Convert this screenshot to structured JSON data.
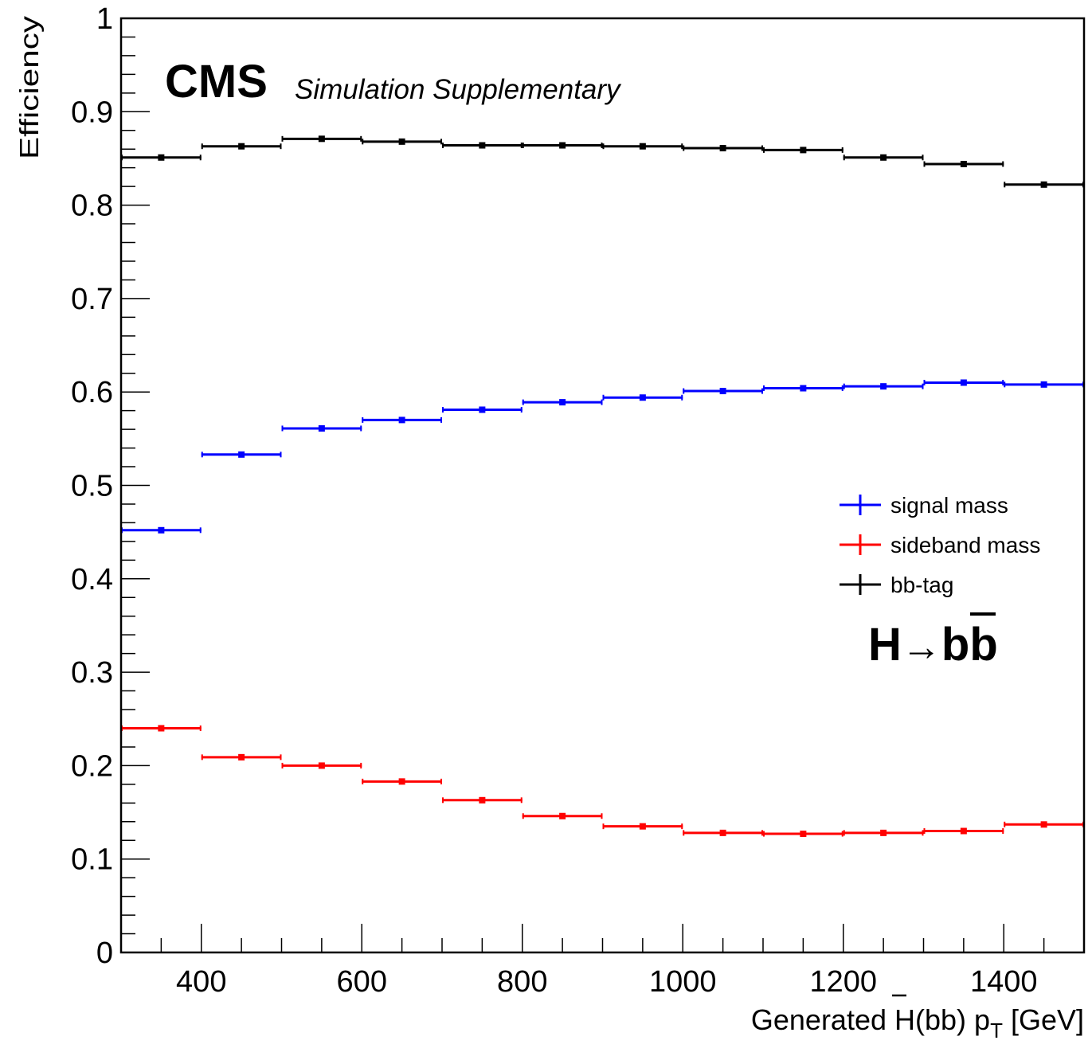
{
  "chart_data": {
    "type": "line",
    "xlabel_parts": {
      "pre": "Generated H(b",
      "bbar": "b",
      "mid": ") p",
      "sub": "T",
      "post": " [GeV]"
    },
    "ylabel": "Efficiency",
    "xlim": [
      300,
      1500
    ],
    "ylim": [
      0,
      1
    ],
    "x_ticks": [
      400,
      600,
      800,
      1000,
      1200,
      1400
    ],
    "y_ticks": [
      0,
      0.1,
      0.2,
      0.3,
      0.4,
      0.5,
      0.6,
      0.7,
      0.8,
      0.9,
      1
    ],
    "y_tick_labels": [
      "0",
      "0.1",
      "0.2",
      "0.3",
      "0.4",
      "0.5",
      "0.6",
      "0.7",
      "0.8",
      "0.9",
      "1"
    ],
    "bin_edges": [
      300,
      400,
      500,
      600,
      700,
      800,
      900,
      1000,
      1100,
      1200,
      1300,
      1400,
      1500
    ],
    "series": [
      {
        "name": "signal mass",
        "color": "#0000ff",
        "values": [
          0.452,
          0.533,
          0.561,
          0.57,
          0.581,
          0.589,
          0.594,
          0.601,
          0.604,
          0.606,
          0.61,
          0.608
        ]
      },
      {
        "name": "sideband mass",
        "color": "#ff0000",
        "values": [
          0.24,
          0.209,
          0.2,
          0.183,
          0.163,
          0.146,
          0.135,
          0.128,
          0.127,
          0.128,
          0.13,
          0.137
        ]
      },
      {
        "name": "bb-tag",
        "color": "#000000",
        "values": [
          0.851,
          0.863,
          0.871,
          0.868,
          0.864,
          0.864,
          0.863,
          0.861,
          0.859,
          0.851,
          0.844,
          0.822
        ]
      }
    ],
    "legend_placement": "right-middle",
    "annotations": {
      "cms": "CMS",
      "cms_sub": "Simulation Supplementary",
      "process_prefix": "H",
      "process_arrow": "→",
      "process_b": "b",
      "process_bbar": "b"
    }
  }
}
